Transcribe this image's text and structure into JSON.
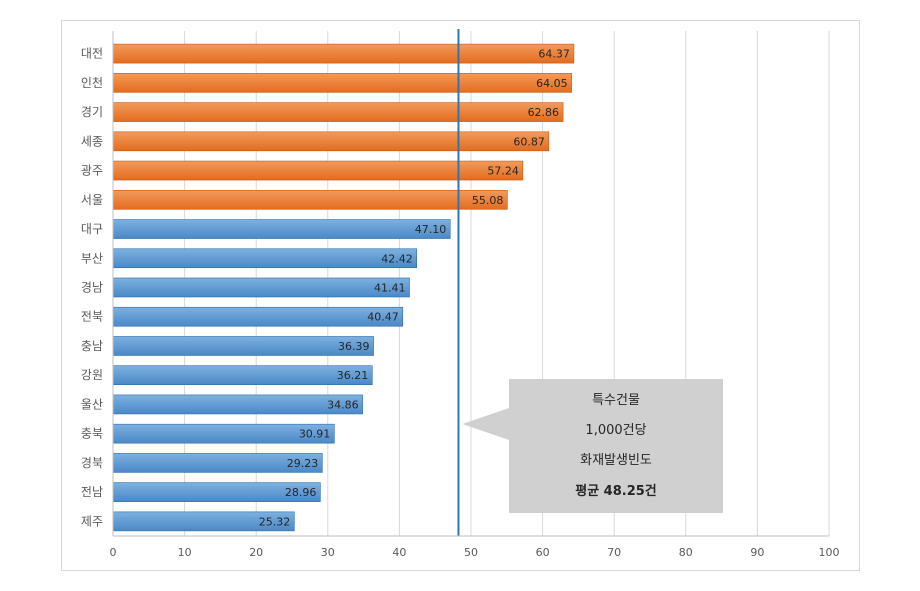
{
  "chart_data": {
    "type": "bar",
    "orientation": "horizontal",
    "categories": [
      "대전",
      "인천",
      "경기",
      "세종",
      "광주",
      "서울",
      "대구",
      "부산",
      "경남",
      "전북",
      "충남",
      "강원",
      "울산",
      "충북",
      "경북",
      "전남",
      "제주"
    ],
    "values": [
      64.37,
      64.05,
      62.86,
      60.87,
      57.24,
      55.08,
      47.1,
      42.42,
      41.41,
      40.47,
      36.39,
      36.21,
      34.86,
      30.91,
      29.23,
      28.96,
      25.32
    ],
    "value_labels": [
      "64.37",
      "64.05",
      "62.86",
      "60.87",
      "57.24",
      "55.08",
      "47.10",
      "42.42",
      "41.41",
      "40.47",
      "36.39",
      "36.21",
      "34.86",
      "30.91",
      "29.23",
      "28.96",
      "25.32"
    ],
    "xlim": [
      0,
      100
    ],
    "x_ticks": [
      "0",
      "10",
      "20",
      "30",
      "40",
      "50",
      "60",
      "70",
      "80",
      "90",
      "100"
    ],
    "grid": true,
    "average": 48.25,
    "above_average_color": "#ED7D31",
    "below_average_color": "#5B9BD5",
    "average_line_color": "#2E75B6",
    "callout": {
      "lines": [
        "특수건물",
        "1,000건당",
        "화재발생빈도"
      ],
      "bold_line": "평균 48.25건"
    }
  }
}
